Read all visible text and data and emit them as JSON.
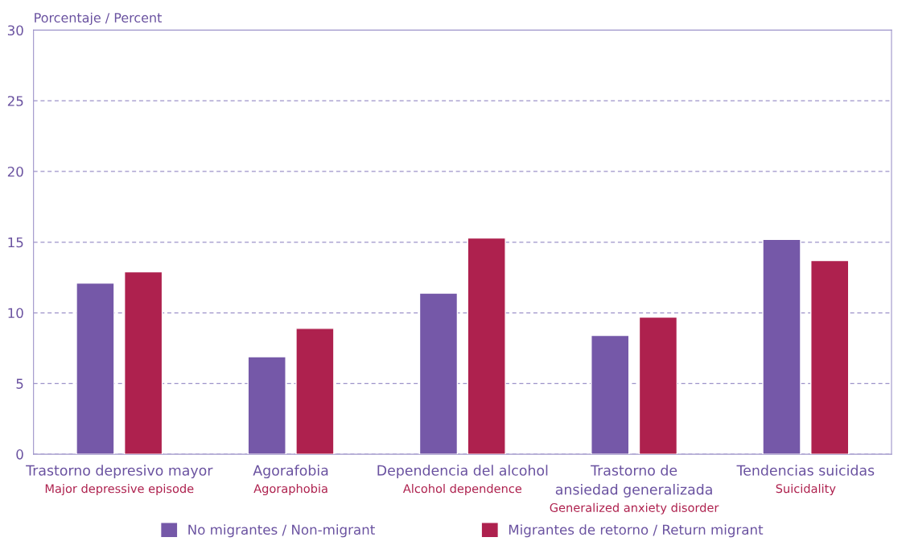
{
  "chart_data": {
    "type": "bar",
    "ylabel": "Porcentaje / Percent",
    "categories": [
      "Trastorno depresivo mayor\nMajor depressive episode",
      "Agorafobia\nAgoraphobia",
      "Dependencia del alcohol\nAlcohol dependence",
      "Trastorno de\nansiedad generalizada\nGeneralized anxiety disorder",
      "Tendencias suicidas\nSuicidality"
    ],
    "series": [
      {
        "name": "No migrantes / Non-migrant",
        "color": "#7558a8",
        "values": [
          12.1,
          6.9,
          11.4,
          8.4,
          15.2
        ]
      },
      {
        "name": "Migrantes de retorno / Return migrant",
        "color": "#ae214e",
        "values": [
          12.9,
          8.9,
          15.3,
          9.7,
          13.7
        ]
      }
    ],
    "ylim": [
      0,
      30
    ],
    "yticks": [
      0,
      5,
      10,
      15,
      20,
      25,
      30
    ],
    "grid": "y",
    "legend": "bottom"
  }
}
